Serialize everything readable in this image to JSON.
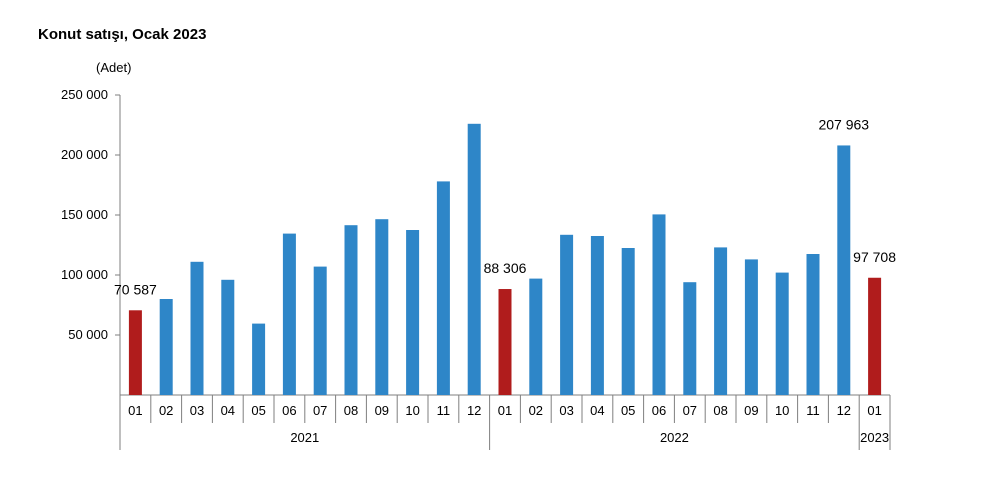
{
  "chart_data": {
    "type": "bar",
    "title": "Konut satışı, Ocak 2023",
    "unit_label": "(Adet)",
    "xlabel": "",
    "ylabel": "",
    "ylim": [
      0,
      250000
    ],
    "yticks": [
      50000,
      100000,
      150000,
      200000,
      250000
    ],
    "ytick_labels": [
      "50 000",
      "100 000",
      "150 000",
      "200 000",
      "250 000"
    ],
    "grid": false,
    "legend": "none",
    "categories": [
      "01",
      "02",
      "03",
      "04",
      "05",
      "06",
      "07",
      "08",
      "09",
      "10",
      "11",
      "12",
      "01",
      "02",
      "03",
      "04",
      "05",
      "06",
      "07",
      "08",
      "09",
      "10",
      "11",
      "12",
      "01"
    ],
    "groups": [
      {
        "label": "2021",
        "start": 0,
        "end": 11
      },
      {
        "label": "2022",
        "start": 12,
        "end": 23
      },
      {
        "label": "2023",
        "start": 24,
        "end": 24
      }
    ],
    "values": [
      70587,
      80000,
      111000,
      96000,
      59500,
      134500,
      107000,
      141500,
      146500,
      137500,
      178000,
      226000,
      88306,
      97000,
      133500,
      132500,
      122500,
      150500,
      94000,
      123000,
      113000,
      102000,
      117500,
      207963,
      97708
    ],
    "highlight_indices": [
      0,
      12,
      24
    ],
    "data_labels": [
      {
        "index": 0,
        "text": "70 587"
      },
      {
        "index": 12,
        "text": "88 306"
      },
      {
        "index": 23,
        "text": "207 963"
      },
      {
        "index": 24,
        "text": "97 708"
      }
    ],
    "colors": {
      "bar": "#2E86C8",
      "highlight": "#B01C1C",
      "axis": "#7f7f7f"
    }
  }
}
